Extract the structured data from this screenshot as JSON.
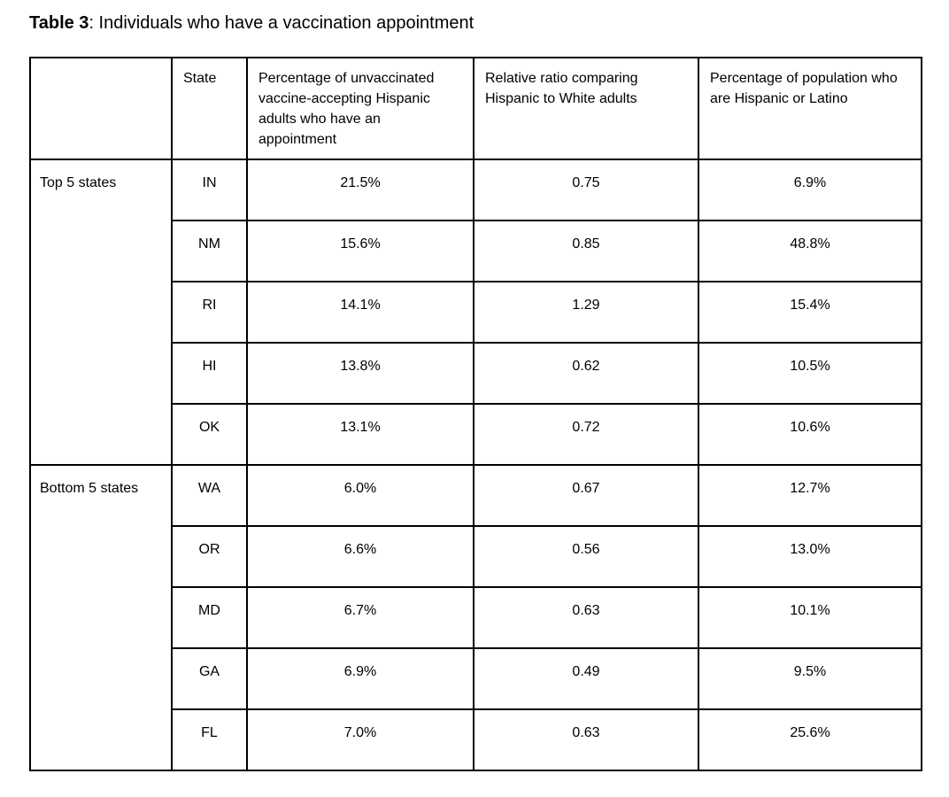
{
  "title": {
    "bold": "Table 3",
    "rest": ": Individuals who have a vaccination appointment"
  },
  "colors": {
    "border": "#000000",
    "text": "#000000",
    "background": "#ffffff"
  },
  "table": {
    "headers": [
      "",
      "State",
      "Percentage of unvaccinated vaccine-accepting Hispanic adults who have an appointment",
      "Relative ratio comparing Hispanic to White adults",
      "Percentage of population who are Hispanic or Latino"
    ],
    "groups": [
      {
        "label": "Top 5 states",
        "rows": [
          {
            "state": "IN",
            "pct_appointment": "21.5%",
            "relative_ratio": "0.75",
            "pct_population": "6.9%"
          },
          {
            "state": "NM",
            "pct_appointment": "15.6%",
            "relative_ratio": "0.85",
            "pct_population": "48.8%"
          },
          {
            "state": "RI",
            "pct_appointment": "14.1%",
            "relative_ratio": "1.29",
            "pct_population": "15.4%"
          },
          {
            "state": "HI",
            "pct_appointment": "13.8%",
            "relative_ratio": "0.62",
            "pct_population": "10.5%"
          },
          {
            "state": "OK",
            "pct_appointment": "13.1%",
            "relative_ratio": "0.72",
            "pct_population": "10.6%"
          }
        ]
      },
      {
        "label": "Bottom 5 states",
        "rows": [
          {
            "state": "WA",
            "pct_appointment": "6.0%",
            "relative_ratio": "0.67",
            "pct_population": "12.7%"
          },
          {
            "state": "OR",
            "pct_appointment": "6.6%",
            "relative_ratio": "0.56",
            "pct_population": "13.0%"
          },
          {
            "state": "MD",
            "pct_appointment": "6.7%",
            "relative_ratio": "0.63",
            "pct_population": "10.1%"
          },
          {
            "state": "GA",
            "pct_appointment": "6.9%",
            "relative_ratio": "0.49",
            "pct_population": "9.5%"
          },
          {
            "state": "FL",
            "pct_appointment": "7.0%",
            "relative_ratio": "0.63",
            "pct_population": "25.6%"
          }
        ]
      }
    ]
  }
}
